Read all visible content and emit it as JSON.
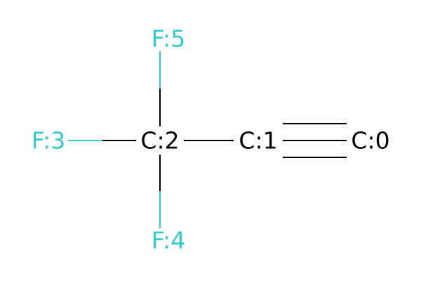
{
  "molecule": {
    "atoms": {
      "c0": {
        "label": "C:0",
        "element": "C"
      },
      "c1": {
        "label": "C:1",
        "element": "C"
      },
      "c2": {
        "label": "C:2",
        "element": "C"
      },
      "f3": {
        "label": "F:3",
        "element": "F"
      },
      "f4": {
        "label": "F:4",
        "element": "F"
      },
      "f5": {
        "label": "F:5",
        "element": "F"
      }
    },
    "bonds": [
      {
        "from": "c2",
        "to": "c1",
        "order": 1
      },
      {
        "from": "c1",
        "to": "c0",
        "order": 3
      },
      {
        "from": "c2",
        "to": "f3",
        "order": 1
      },
      {
        "from": "c2",
        "to": "f4",
        "order": 1
      },
      {
        "from": "c2",
        "to": "f5",
        "order": 1
      }
    ]
  },
  "colors": {
    "carbon": "#000000",
    "fluorine": "#33CCCC",
    "background": "#FFFFFF"
  }
}
